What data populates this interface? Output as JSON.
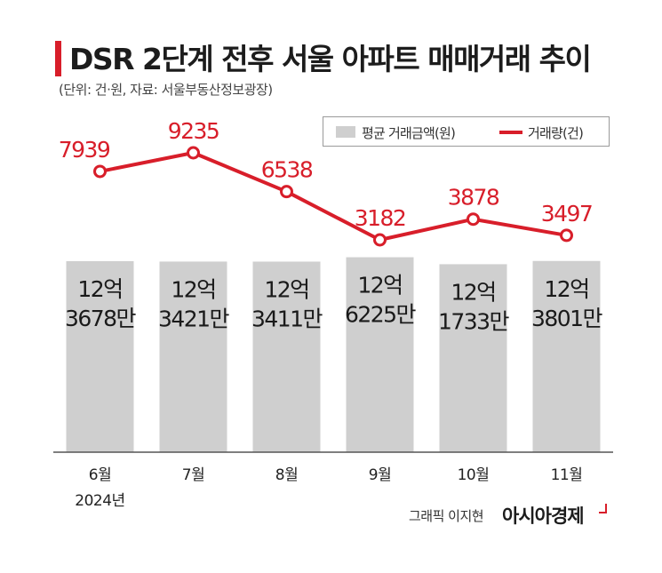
{
  "header": {
    "title": "DSR 2단계 전후 서울 아파트 매매거래 추이",
    "subtitle": "(단위: 건·원, 자료: 서울부동산정보광장)"
  },
  "legend": {
    "bar_label": "평균 거래금액(원)",
    "line_label": "거래량(건)"
  },
  "footer": {
    "credit": "그래픽 이지현",
    "brand": "아시아경제"
  },
  "colors": {
    "line": "#d81e2a",
    "bar": "#cfcfcf",
    "axis": "#555555"
  },
  "chart_data": {
    "type": "bar",
    "title": "DSR 2단계 전후 서울 아파트 매매거래 추이",
    "categories": [
      "6월",
      "7월",
      "8월",
      "9월",
      "10월",
      "11월"
    ],
    "category_sublabels": [
      "2024년",
      "",
      "",
      "",
      "",
      ""
    ],
    "series": [
      {
        "name": "평균 거래금액(원)",
        "type": "bar",
        "values": [
          1236780000,
          1234210000,
          1234110000,
          1262250000,
          1217330000,
          1238010000
        ],
        "labels": [
          [
            "12억",
            "3678만"
          ],
          [
            "12억",
            "3421만"
          ],
          [
            "12억",
            "3411만"
          ],
          [
            "12억",
            "6225만"
          ],
          [
            "12억",
            "1733만"
          ],
          [
            "12억",
            "3801만"
          ]
        ]
      },
      {
        "name": "거래량(건)",
        "type": "line",
        "values": [
          7939,
          9235,
          6538,
          3182,
          3878,
          3497
        ],
        "labels": [
          "7939",
          "9235",
          "6538",
          "3182",
          "3878",
          "3497"
        ]
      }
    ],
    "ylabel": "",
    "xlabel": "",
    "grid": false,
    "legend_position": "top-right"
  }
}
